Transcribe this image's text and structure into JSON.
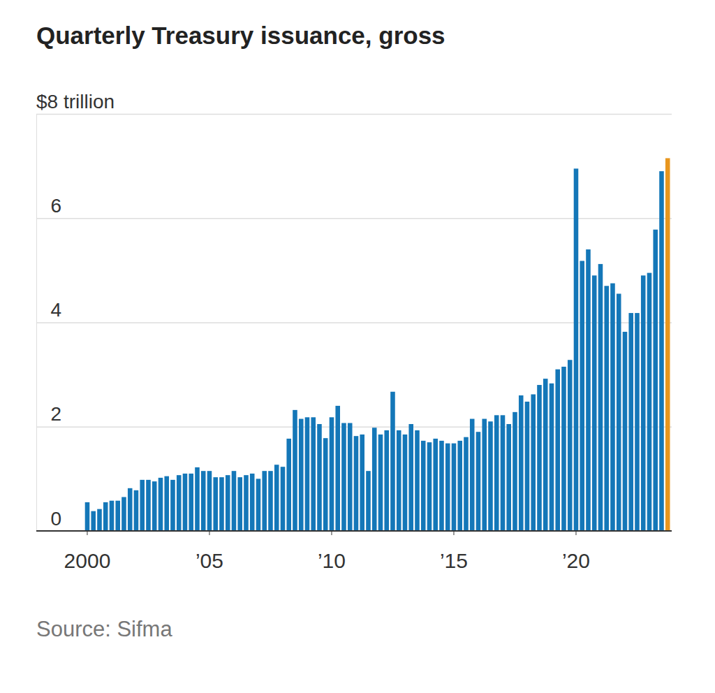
{
  "chart_data": {
    "type": "bar",
    "title": "Quarterly Treasury issuance, gross",
    "source": "Source: Sifma",
    "categories": [
      "2000",
      null,
      null,
      null,
      null,
      null,
      null,
      null,
      null,
      null,
      null,
      null,
      null,
      null,
      null,
      null,
      null,
      null,
      null,
      null,
      "’05",
      null,
      null,
      null,
      null,
      null,
      null,
      null,
      null,
      null,
      null,
      null,
      null,
      null,
      null,
      null,
      null,
      null,
      null,
      null,
      "’10",
      null,
      null,
      null,
      null,
      null,
      null,
      null,
      null,
      null,
      null,
      null,
      null,
      null,
      null,
      null,
      null,
      null,
      null,
      null,
      "’15",
      null,
      null,
      null,
      null,
      null,
      null,
      null,
      null,
      null,
      null,
      null,
      null,
      null,
      null,
      null,
      null,
      null,
      null,
      null,
      "’20",
      null,
      null,
      null,
      null,
      null,
      null,
      null,
      null,
      null,
      null,
      null,
      null,
      null,
      null,
      null
    ],
    "values": [
      0.55,
      0.38,
      0.42,
      0.55,
      0.58,
      0.58,
      0.65,
      0.82,
      0.78,
      0.98,
      0.98,
      0.95,
      1.02,
      1.05,
      0.98,
      1.07,
      1.1,
      1.1,
      1.22,
      1.15,
      1.15,
      1.03,
      1.03,
      1.07,
      1.15,
      1.03,
      1.07,
      1.1,
      1.0,
      1.15,
      1.15,
      1.27,
      1.23,
      1.77,
      2.32,
      2.15,
      2.18,
      2.18,
      2.05,
      1.78,
      2.18,
      2.4,
      2.07,
      2.07,
      1.82,
      1.85,
      1.15,
      1.98,
      1.85,
      1.93,
      2.67,
      1.93,
      1.85,
      2.05,
      1.93,
      1.73,
      1.7,
      1.77,
      1.73,
      1.68,
      1.68,
      1.73,
      1.8,
      2.15,
      1.9,
      2.15,
      2.1,
      2.22,
      2.22,
      2.05,
      2.28,
      2.6,
      2.48,
      2.62,
      2.8,
      2.92,
      2.83,
      3.1,
      3.15,
      3.28,
      6.95,
      5.18,
      5.4,
      4.9,
      5.12,
      4.7,
      4.75,
      4.55,
      3.82,
      4.18,
      4.18,
      4.9,
      4.95,
      5.78,
      6.9,
      7.15
    ],
    "colors": [
      "#1477b8",
      "#1477b8",
      "#1477b8",
      "#1477b8",
      "#1477b8",
      "#1477b8",
      "#1477b8",
      "#1477b8",
      "#1477b8",
      "#1477b8",
      "#1477b8",
      "#1477b8",
      "#1477b8",
      "#1477b8",
      "#1477b8",
      "#1477b8",
      "#1477b8",
      "#1477b8",
      "#1477b8",
      "#1477b8",
      "#1477b8",
      "#1477b8",
      "#1477b8",
      "#1477b8",
      "#1477b8",
      "#1477b8",
      "#1477b8",
      "#1477b8",
      "#1477b8",
      "#1477b8",
      "#1477b8",
      "#1477b8",
      "#1477b8",
      "#1477b8",
      "#1477b8",
      "#1477b8",
      "#1477b8",
      "#1477b8",
      "#1477b8",
      "#1477b8",
      "#1477b8",
      "#1477b8",
      "#1477b8",
      "#1477b8",
      "#1477b8",
      "#1477b8",
      "#1477b8",
      "#1477b8",
      "#1477b8",
      "#1477b8",
      "#1477b8",
      "#1477b8",
      "#1477b8",
      "#1477b8",
      "#1477b8",
      "#1477b8",
      "#1477b8",
      "#1477b8",
      "#1477b8",
      "#1477b8",
      "#1477b8",
      "#1477b8",
      "#1477b8",
      "#1477b8",
      "#1477b8",
      "#1477b8",
      "#1477b8",
      "#1477b8",
      "#1477b8",
      "#1477b8",
      "#1477b8",
      "#1477b8",
      "#1477b8",
      "#1477b8",
      "#1477b8",
      "#1477b8",
      "#1477b8",
      "#1477b8",
      "#1477b8",
      "#1477b8",
      "#1477b8",
      "#1477b8",
      "#1477b8",
      "#1477b8",
      "#1477b8",
      "#1477b8",
      "#1477b8",
      "#1477b8",
      "#1477b8",
      "#1477b8",
      "#1477b8",
      "#1477b8",
      "#1477b8",
      "#1477b8",
      "#1477b8",
      "#e8961e"
    ],
    "ylim": [
      0,
      8
    ],
    "yticks": [
      0,
      2,
      4,
      6,
      {
        "value": 8,
        "label": "$8 trillion"
      }
    ],
    "grid": true
  }
}
